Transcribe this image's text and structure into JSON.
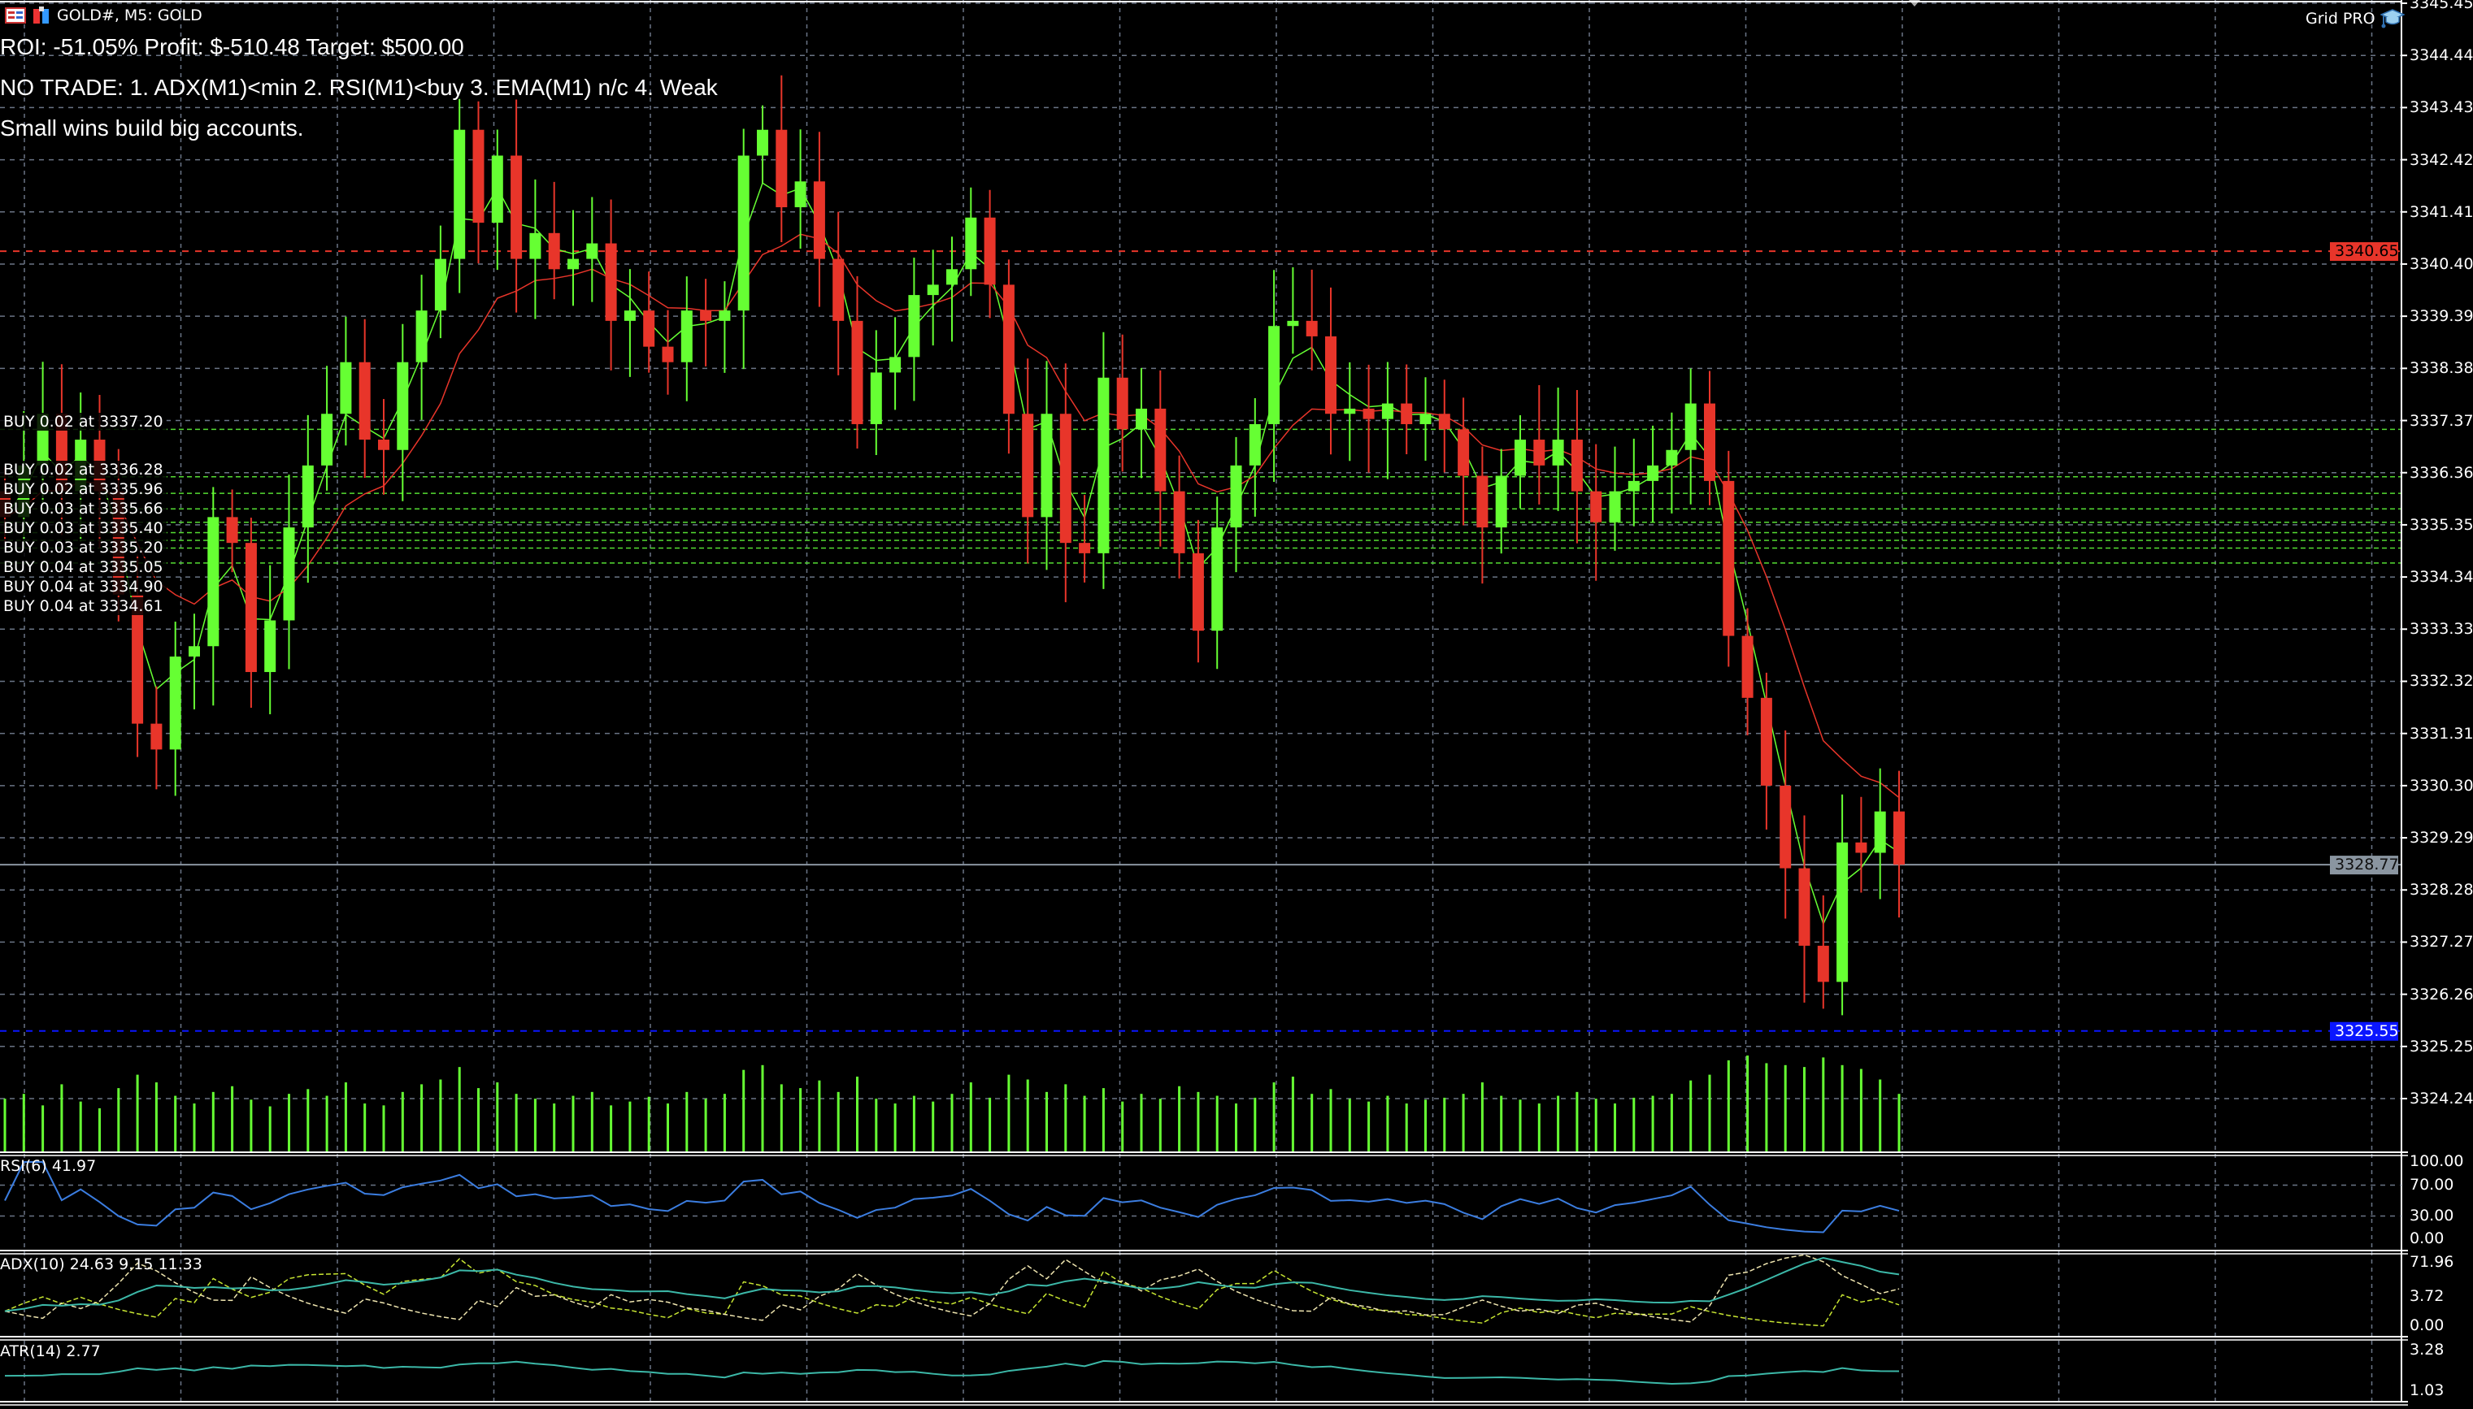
{
  "header": {
    "title": "GOLD#, M5:  GOLD",
    "icons": [
      "table-icon",
      "chart-window-icon"
    ]
  },
  "overlay": {
    "roi_line": "ROI: -51.05%   Profit: $-510.48   Target: $500.00",
    "status_line": "NO TRADE: 1. ADX(M1)<min 2. RSI(M1)<buy 3. EMA(M1) n/c 4. Weak",
    "motto": "Small wins build big accounts."
  },
  "expert": {
    "name": "Grid PRO",
    "icon": "graduation-cap-icon"
  },
  "price_axis": {
    "ticks": [
      "3345.45",
      "3344.44",
      "3343.43",
      "3342.42",
      "3341.41",
      "3340.40",
      "3339.39",
      "3338.38",
      "3337.37",
      "3336.36",
      "3335.35",
      "3334.34",
      "3333.33",
      "3332.32",
      "3331.31",
      "3330.30",
      "3329.29",
      "3328.28",
      "3327.27",
      "3326.26",
      "3325.25",
      "3324.24"
    ],
    "bid_label": "3328.77",
    "red_level_label": "3340.65",
    "blue_level_label": "3325.55"
  },
  "colors": {
    "bull": "#66ff33",
    "bear": "#e8352a",
    "ema_fast": "#66ff33",
    "ema_slow": "#e8352a",
    "rsi": "#3b7de0",
    "adx": "#3cb8a8",
    "plus_di": "#c8e632",
    "minus_di": "#f0e6b0",
    "atr": "#3cb8a8",
    "red_level": "#e8352a",
    "blue_level": "#0a16ff",
    "bid": "#8a95a0",
    "grid": "#6a7485",
    "buy_level": "#55dd33"
  },
  "orders": [
    {
      "label": "BUY 0.02 at 3337.20",
      "price": 3337.2
    },
    {
      "label": "BUY 0.02 at 3336.28",
      "price": 3336.28
    },
    {
      "label": "BUY 0.02 at 3335.96",
      "price": 3335.96
    },
    {
      "label": "BUY 0.03 at 3335.66",
      "price": 3335.66
    },
    {
      "label": "BUY 0.03 at 3335.40",
      "price": 3335.4
    },
    {
      "label": "BUY 0.03 at 3335.20",
      "price": 3335.2
    },
    {
      "label": "BUY 0.04 at 3335.05",
      "price": 3335.05
    },
    {
      "label": "BUY 0.04 at 3334.90",
      "price": 3334.9
    },
    {
      "label": "BUY 0.04 at 3334.61",
      "price": 3334.61
    }
  ],
  "indicators": {
    "rsi": {
      "label": "RSI(6) 41.97",
      "levels": [
        "100.00",
        "70.00",
        "30.00",
        "0.00"
      ]
    },
    "adx": {
      "label": "ADX(10) 24.63 9.15 11.33",
      "levels": [
        "71.96",
        "0.00"
      ],
      "extra": "3.72"
    },
    "atr": {
      "label": "ATR(14) 2.77",
      "levels": [
        "3.28",
        "1.03"
      ]
    }
  },
  "chart_data": {
    "type": "candlestick",
    "symbol": "GOLD#",
    "timeframe": "M5",
    "ylim": [
      3324.24,
      3345.45
    ],
    "grid": true,
    "close": [
      3335.5,
      3336.5,
      3337.5,
      3336,
      3337,
      3336,
      3334,
      3331.5,
      3331,
      3332.8,
      3333,
      3335.5,
      3335,
      3332.5,
      3333.5,
      3335.3,
      3336.5,
      3337.5,
      3338.5,
      3337,
      3336.8,
      3338.5,
      3339.5,
      3340.5,
      3343,
      3341.2,
      3342.5,
      3340.5,
      3341,
      3340.3,
      3340.5,
      3340.8,
      3339.3,
      3339.5,
      3338.8,
      3338.5,
      3339.5,
      3339.3,
      3339.5,
      3342.5,
      3343,
      3341.5,
      3342,
      3340.5,
      3339.3,
      3337.3,
      3338.3,
      3338.6,
      3339.8,
      3340,
      3340.3,
      3341.3,
      3340,
      3337.5,
      3335.5,
      3337.5,
      3335,
      3334.8,
      3338.2,
      3337.2,
      3337.6,
      3336,
      3334.8,
      3333.3,
      3335.3,
      3336.5,
      3337.3,
      3339.2,
      3339.3,
      3339,
      3337.5,
      3337.6,
      3337.4,
      3337.7,
      3337.3,
      3337.5,
      3337.2,
      3336.3,
      3335.3,
      3336.3,
      3337,
      3336.5,
      3337,
      3336,
      3335.4,
      3336,
      3336.2,
      3336.5,
      3336.8,
      3337.7,
      3336.2,
      3333.2,
      3332,
      3330.3,
      3328.7,
      3327.2,
      3326.5,
      3329.2,
      3329,
      3329.8,
      3328.77
    ],
    "volume": [
      55,
      60,
      48,
      70,
      52,
      45,
      66,
      80,
      72,
      58,
      50,
      62,
      68,
      54,
      47,
      60,
      65,
      58,
      72,
      50,
      48,
      62,
      70,
      75,
      88,
      66,
      72,
      60,
      55,
      50,
      58,
      62,
      48,
      52,
      57,
      50,
      62,
      55,
      60,
      85,
      90,
      70,
      66,
      74,
      62,
      78,
      55,
      50,
      58,
      52,
      60,
      72,
      56,
      80,
      75,
      62,
      70,
      58,
      66,
      52,
      60,
      55,
      68,
      62,
      58,
      50,
      56,
      72,
      78,
      60,
      65,
      55,
      52,
      58,
      50,
      54,
      56,
      60,
      72,
      58,
      54,
      50,
      58,
      62,
      55,
      50,
      56,
      58,
      60,
      74,
      80,
      95,
      100,
      92,
      90,
      88,
      98,
      90,
      86,
      75,
      60
    ]
  }
}
